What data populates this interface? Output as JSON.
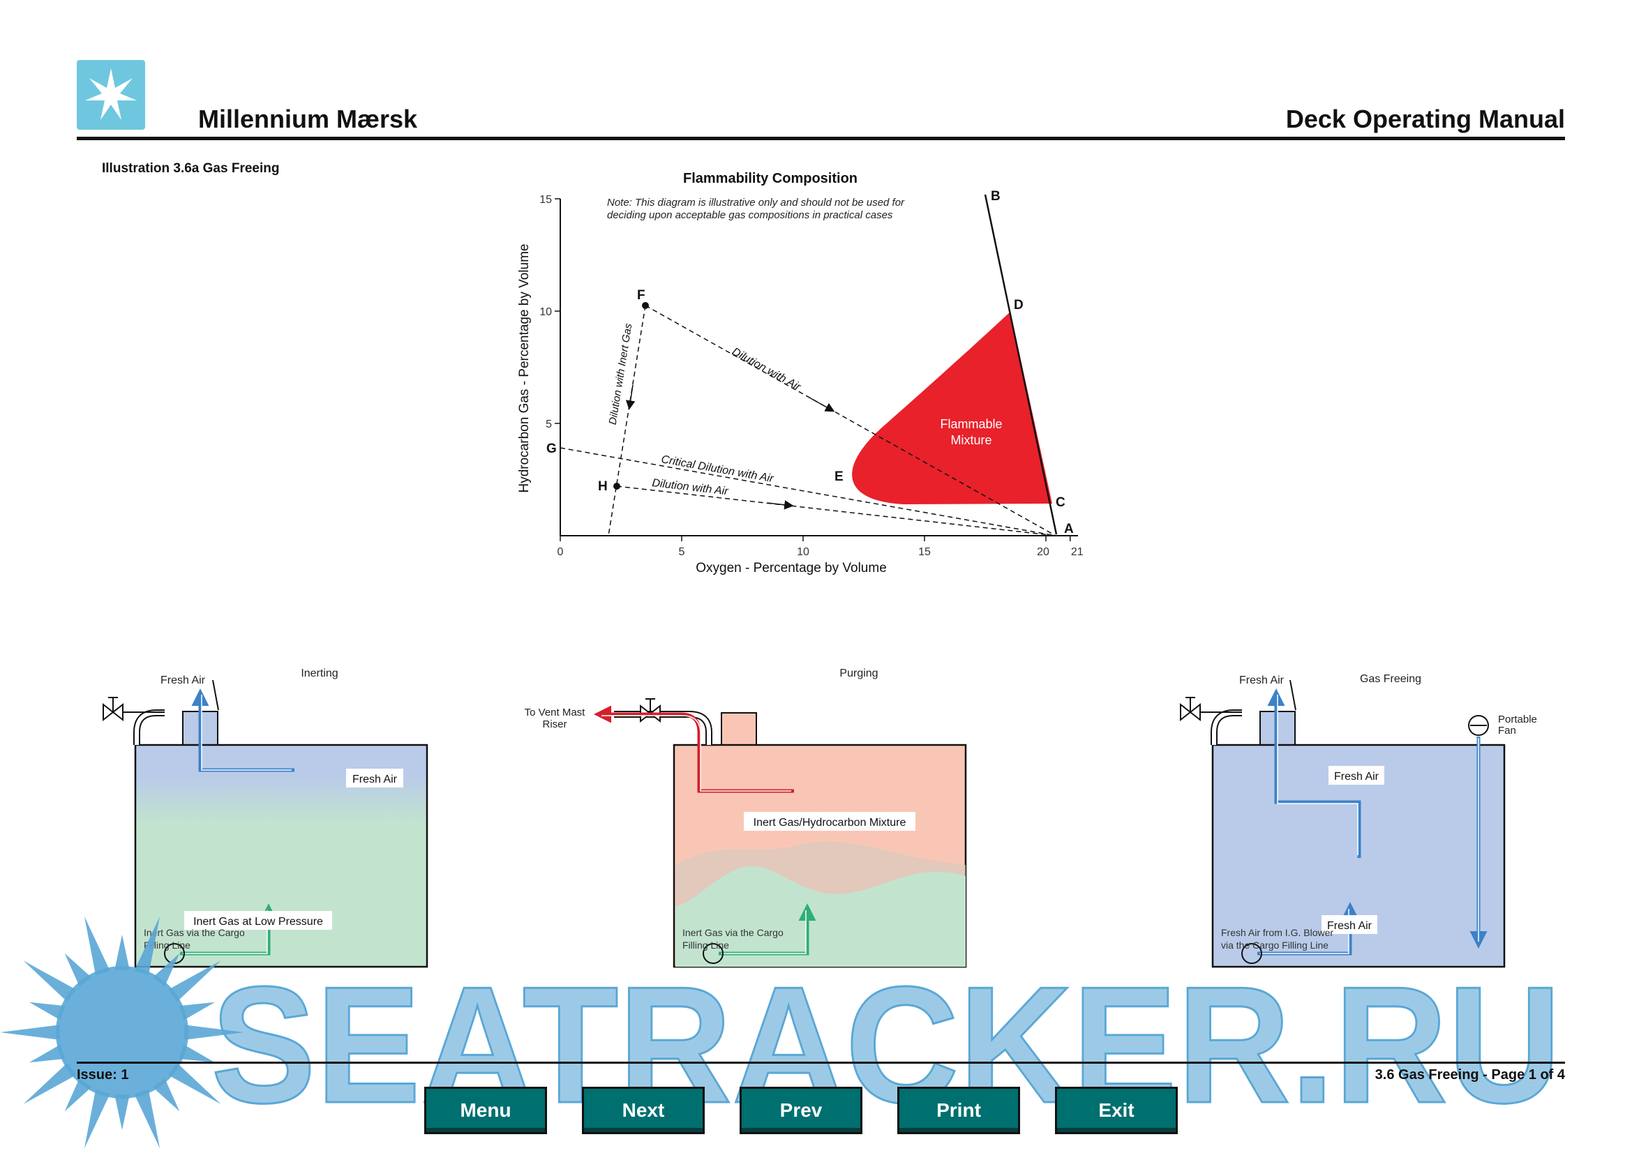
{
  "header": {
    "ship_name": "Millennium Mærsk",
    "manual_title": "Deck Operating Manual"
  },
  "illustration_title": "Illustration 3.6a Gas Freeing",
  "chart": {
    "title": "Flammability Composition",
    "note_line1": "Note: This diagram is illustrative only and should not be used for",
    "note_line2": "deciding upon acceptable gas compositions in practical cases",
    "xlabel": "Oxygen - Percentage by Volume",
    "ylabel": "Hydrocarbon Gas - Percentage by Volume",
    "x_ticks": [
      "0",
      "5",
      "10",
      "15",
      "20",
      "21"
    ],
    "y_ticks": [
      "5",
      "10",
      "15"
    ],
    "points": {
      "A": "A",
      "B": "B",
      "C": "C",
      "D": "D",
      "E": "E",
      "F": "F",
      "G": "G",
      "H": "H"
    },
    "labels": {
      "flammable_line1": "Flammable",
      "flammable_line2": "Mixture",
      "dilution_air_f": "Dilution with Air",
      "dilution_inert": "Dilution with Inert Gas",
      "critical": "Critical Dilution with Air",
      "dilution_air_h": "Dilution with Air"
    },
    "colors": {
      "flammable": "#e8212b"
    }
  },
  "chart_data": {
    "type": "line",
    "title": "Flammability Composition",
    "xlabel": "Oxygen - Percentage by Volume",
    "ylabel": "Hydrocarbon Gas - Percentage by Volume",
    "xlim": [
      0,
      21
    ],
    "ylim": [
      0,
      15
    ],
    "points": [
      {
        "name": "A",
        "x": 20.8,
        "y": 0
      },
      {
        "name": "B",
        "x": 17.5,
        "y": 15.3
      },
      {
        "name": "C",
        "x": 20.2,
        "y": 1.4
      },
      {
        "name": "D",
        "x": 18.6,
        "y": 10.0
      },
      {
        "name": "E",
        "x": 11.8,
        "y": 2.4
      },
      {
        "name": "F",
        "x": 3.5,
        "y": 10.2
      },
      {
        "name": "G",
        "x": 0,
        "y": 4.0
      },
      {
        "name": "H",
        "x": 2.3,
        "y": 2.2
      }
    ],
    "series": [
      {
        "name": "Dilution with Air",
        "from": "F",
        "to": "A"
      },
      {
        "name": "Dilution with Inert Gas",
        "from": "F",
        "to": "H"
      },
      {
        "name": "Critical Dilution with Air",
        "from": "G",
        "to": "A"
      },
      {
        "name": "Dilution with Air",
        "from": "H",
        "to": "A"
      }
    ]
  },
  "tanks": {
    "inerting": {
      "title": "Inerting",
      "top_label": "Fresh Air",
      "upper_box": "Fresh Air",
      "lower_box": "Inert Gas at Low Pressure",
      "bottom_line1": "Inert Gas via the Cargo",
      "bottom_line2": "Filling Line"
    },
    "purging": {
      "title": "Purging",
      "vent_line1": "To Vent Mast",
      "vent_line2": "Riser",
      "upper_box": "Inert Gas/Hydrocarbon Mixture",
      "bottom_line1": "Inert Gas via the Cargo",
      "bottom_line2": "Filling Line"
    },
    "gas_freeing": {
      "title": "Gas Freeing",
      "top_label": "Fresh Air",
      "fan_line1": "Portable",
      "fan_line2": "Fan",
      "upper_box": "Fresh Air",
      "lower_box": "Fresh Air",
      "bottom_line1": "Fresh Air from I.G. Blower",
      "bottom_line2": "via the Cargo Filling Line"
    }
  },
  "watermark": "SEATRACKER.RU",
  "footer": {
    "issue": "Issue: 1",
    "page": "3.6 Gas Freeing - Page 1 of 4"
  },
  "nav": {
    "menu": "Menu",
    "next": "Next",
    "prev": "Prev",
    "print": "Print",
    "exit": "Exit"
  }
}
